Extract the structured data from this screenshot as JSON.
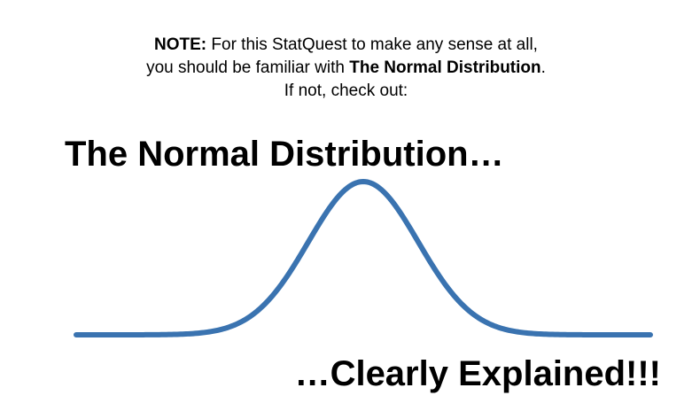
{
  "note": {
    "label": "NOTE:",
    "line1_text": " For this StatQuest to make any sense at all,",
    "line2_prefix": "you should be familiar with ",
    "line2_bold": "The Normal Distribution",
    "line2_suffix": ".",
    "line3": "If not, check out:"
  },
  "title": "The Normal Distribution…",
  "subtitle": "…Clearly Explained!!!",
  "curve": {
    "color": "#3a73b0"
  }
}
